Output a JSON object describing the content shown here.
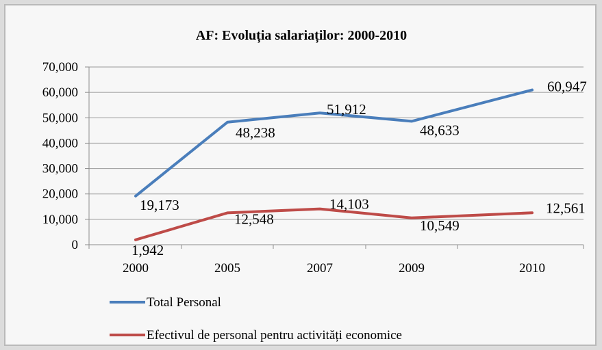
{
  "chart_data": {
    "type": "line",
    "title": "AF: Evoluția salariaților: 2000-2010",
    "categories": [
      "2000",
      "2005",
      "2007",
      "2009",
      "2010"
    ],
    "y_ticks": [
      "0",
      "10,000",
      "20,000",
      "30,000",
      "40,000",
      "50,000",
      "60,000",
      "70,000"
    ],
    "ylim": [
      0,
      70000
    ],
    "grid": true,
    "legend_position": "bottom-left",
    "series": [
      {
        "name": "Total Personal",
        "color": "#4a7ebb",
        "values": [
          19173,
          48238,
          51912,
          48633,
          60947
        ],
        "labels": [
          "19,173",
          "48,238",
          "51,912",
          "48,633",
          "60,947"
        ]
      },
      {
        "name": "Efectivul de personal pentru activități economice",
        "color": "#be4b48",
        "values": [
          1942,
          12548,
          14103,
          10549,
          12561
        ],
        "labels": [
          "1,942",
          "12,548",
          "14,103",
          "10,549",
          "12,561"
        ]
      }
    ]
  }
}
